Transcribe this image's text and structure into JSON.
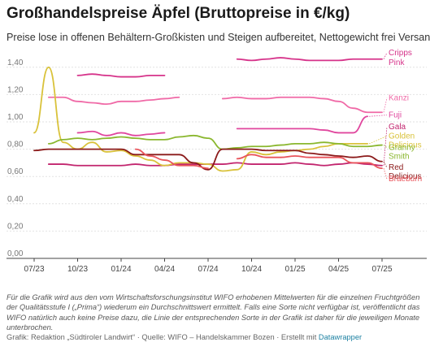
{
  "header": {
    "title": "Großhandelspreise Äpfel (Bruttopreise in €/kg)",
    "subtitle": "Preise lose in offenen Behältern-Großkisten und Steigen aufbereitet, Nettogewicht frei Versand"
  },
  "footer": {
    "note": "Für die Grafik wird aus den vom Wirtschaftsforschungsinstitut WIFO erhobenen Mittelwerten für die einzelnen Fruchtgrößen der Qualitätsstufe I („Prima“) wiederum ein Durchschnittswert ermittelt. Falls eine Sorte nicht verfügbar ist, veröffentlicht das WIFO natürlich auch keine Preise dazu, die Linie der entsprechenden Sorte in der Grafik ist daher für die jeweiligen Monate unterbrochen.",
    "credit_prefix": "Grafik: Redaktion „Südtiroler Landwirt“ · Quelle: WIFO – Handelskammer Bozen · Erstellt mit ",
    "credit_link": "Datawrapper"
  },
  "chart_data": {
    "type": "line",
    "title": "Großhandelspreise Äpfel (Bruttopreise in €/kg)",
    "ylim": [
      0,
      1.5
    ],
    "yticks": [
      0,
      0.2,
      0.4,
      0.6,
      0.8,
      1.0,
      1.2,
      1.4
    ],
    "ytick_labels": [
      "0,00",
      "0,20",
      "0,40",
      "0,60",
      "0,80",
      "1,00",
      "1,20",
      "1,40"
    ],
    "x": [
      "07/23",
      "08/23",
      "09/23",
      "10/23",
      "11/23",
      "12/23",
      "01/24",
      "02/24",
      "03/24",
      "04/24",
      "05/24",
      "06/24",
      "07/24",
      "08/24",
      "09/24",
      "10/24",
      "11/24",
      "12/24",
      "01/25",
      "02/25",
      "03/25",
      "04/25",
      "05/25",
      "06/25",
      "07/25"
    ],
    "xtick_labels": [
      "07/23",
      "10/23",
      "01/24",
      "04/24",
      "07/24",
      "10/24",
      "01/25",
      "04/25",
      "07/25"
    ],
    "grid": true,
    "series": [
      {
        "name": "Cripps Pink",
        "color": "#d6338a",
        "values": [
          null,
          null,
          null,
          1.34,
          1.35,
          1.34,
          1.33,
          1.33,
          1.34,
          1.34,
          null,
          null,
          null,
          null,
          1.46,
          1.45,
          1.46,
          1.47,
          1.46,
          1.45,
          1.45,
          1.45,
          1.46,
          1.46,
          1.46
        ]
      },
      {
        "name": "Kanzi",
        "color": "#f06aa7",
        "values": [
          null,
          1.18,
          1.18,
          1.15,
          1.14,
          1.13,
          1.15,
          1.15,
          1.16,
          1.17,
          1.18,
          null,
          null,
          1.17,
          1.18,
          1.17,
          1.17,
          1.18,
          1.18,
          1.18,
          1.17,
          1.15,
          1.1,
          1.07,
          1.07
        ]
      },
      {
        "name": "Fuji",
        "color": "#e0479e",
        "values": [
          null,
          null,
          null,
          0.92,
          0.93,
          0.9,
          0.92,
          0.9,
          0.91,
          0.92,
          null,
          null,
          null,
          null,
          0.95,
          0.95,
          0.95,
          0.95,
          0.95,
          0.95,
          0.94,
          0.92,
          0.92,
          1.04,
          null
        ]
      },
      {
        "name": "Gala",
        "color": "#c2256e",
        "values": [
          null,
          0.69,
          0.69,
          0.68,
          0.68,
          0.68,
          0.68,
          0.69,
          0.68,
          0.68,
          0.69,
          0.69,
          0.69,
          0.69,
          0.7,
          0.69,
          0.69,
          0.69,
          0.7,
          0.69,
          0.68,
          0.69,
          0.7,
          0.69,
          0.68
        ]
      },
      {
        "name": "Golden Delicious",
        "color": "#d9c23a",
        "values": [
          0.92,
          1.4,
          0.85,
          0.8,
          0.85,
          0.78,
          0.79,
          0.75,
          0.72,
          0.68,
          0.7,
          0.7,
          0.69,
          0.64,
          0.65,
          0.78,
          0.76,
          0.78,
          0.79,
          0.8,
          0.82,
          0.84,
          0.84,
          0.84,
          null
        ]
      },
      {
        "name": "Granny Smith",
        "color": "#8ab72e",
        "values": [
          null,
          0.84,
          0.87,
          0.88,
          0.87,
          0.88,
          0.89,
          0.88,
          0.87,
          0.87,
          0.89,
          0.9,
          0.88,
          0.8,
          0.81,
          0.82,
          0.82,
          0.83,
          0.84,
          0.84,
          0.85,
          0.84,
          0.82,
          0.82,
          0.83
        ]
      },
      {
        "name": "Red Delicious",
        "color": "#8b1a1a",
        "values": [
          0.79,
          0.8,
          0.8,
          0.8,
          0.8,
          0.8,
          0.8,
          0.76,
          0.76,
          0.76,
          0.76,
          0.7,
          0.65,
          0.8,
          0.8,
          0.8,
          0.79,
          0.79,
          0.79,
          0.77,
          0.76,
          0.75,
          0.74,
          0.75,
          0.71
        ]
      },
      {
        "name": "Braeburn",
        "color": "#e9545b",
        "values": [
          null,
          null,
          null,
          null,
          null,
          null,
          null,
          0.8,
          0.75,
          0.72,
          0.68,
          0.68,
          0.66,
          null,
          0.73,
          0.76,
          0.74,
          0.74,
          0.75,
          0.74,
          0.74,
          0.74,
          0.7,
          0.7,
          0.66
        ]
      }
    ]
  }
}
